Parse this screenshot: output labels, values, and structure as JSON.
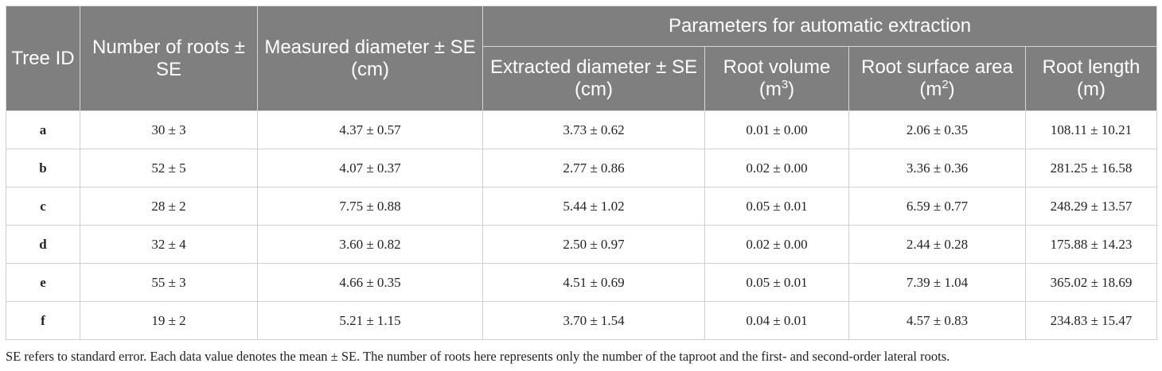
{
  "table": {
    "headers": {
      "tree_id": "Tree ID",
      "number_of_roots": "Number of roots ± SE",
      "measured_diameter": "Measured diameter ± SE (cm)",
      "group": "Parameters for automatic extraction",
      "extracted_diameter": "Extracted diameter ± SE (cm)",
      "root_volume": "Root volume (m",
      "root_volume_exp": "3",
      "root_surface_area": "Root surface area (m",
      "root_surface_area_exp": "2",
      "close_paren": ")",
      "root_length": "Root length (m)"
    },
    "rows": [
      {
        "id": "a",
        "roots": "30 ± 3",
        "measured": "4.37 ± 0.57",
        "extracted": "3.73 ± 0.62",
        "volume": "0.01 ± 0.00",
        "surface": "2.06 ± 0.35",
        "length": "108.11 ± 10.21"
      },
      {
        "id": "b",
        "roots": "52 ± 5",
        "measured": "4.07 ± 0.37",
        "extracted": "2.77 ± 0.86",
        "volume": "0.02 ± 0.00",
        "surface": "3.36 ± 0.36",
        "length": "281.25 ± 16.58"
      },
      {
        "id": "c",
        "roots": "28 ± 2",
        "measured": "7.75 ± 0.88",
        "extracted": "5.44 ± 1.02",
        "volume": "0.05 ± 0.01",
        "surface": "6.59 ± 0.77",
        "length": "248.29 ± 13.57"
      },
      {
        "id": "d",
        "roots": "32 ± 4",
        "measured": "3.60 ± 0.82",
        "extracted": "2.50 ± 0.97",
        "volume": "0.02 ± 0.00",
        "surface": "2.44 ± 0.28",
        "length": "175.88 ± 14.23"
      },
      {
        "id": "e",
        "roots": "55 ± 3",
        "measured": "4.66 ± 0.35",
        "extracted": "4.51 ± 0.69",
        "volume": "0.05 ± 0.01",
        "surface": "7.39 ± 1.04",
        "length": "365.02 ± 18.69"
      },
      {
        "id": "f",
        "roots": "19 ± 2",
        "measured": "5.21 ± 1.15",
        "extracted": "3.70 ± 1.54",
        "volume": "0.04 ± 0.01",
        "surface": "4.57 ± 0.83",
        "length": "234.83 ± 15.47"
      }
    ]
  },
  "footnote": "SE refers to standard error. Each data value denotes the mean ± SE. The number of roots here represents only the number of the taproot and the first- and second-order lateral roots.",
  "colors": {
    "header_bg": "#7f7f7f",
    "header_text": "#ffffff",
    "border": "#cfcfcf"
  }
}
